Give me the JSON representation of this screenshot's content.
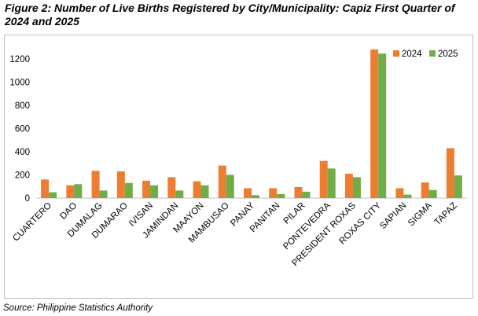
{
  "figure": {
    "title": "Figure 2: Number of Live Births Registered by City/Municipality: Capiz First Quarter of 2024 and 2025",
    "source": "Source: Philippine Statistics Authority"
  },
  "colors": {
    "s2024": "#ED7D31",
    "s2025": "#70AD47",
    "axis": "#bfbfbf"
  },
  "chart_data": {
    "type": "bar",
    "categories": [
      "CUARTERO",
      "DAO",
      "DUMALAG",
      "DUMARAO",
      "IVISAN",
      "JAMINDAN",
      "MAAYON",
      "MAMBUSAO",
      "PANAY",
      "PANITAN",
      "PILAR",
      "PONTEVEDRA",
      "PRESIDENT ROXAS",
      "ROXAS CITY",
      "SAPIAN",
      "SIGMA",
      "TAPAZ"
    ],
    "series": [
      {
        "name": "2024",
        "values": [
          160,
          110,
          235,
          230,
          150,
          180,
          145,
          280,
          85,
          85,
          95,
          320,
          210,
          1280,
          85,
          135,
          430
        ]
      },
      {
        "name": "2025",
        "values": [
          50,
          120,
          65,
          130,
          110,
          65,
          110,
          200,
          25,
          35,
          55,
          255,
          180,
          1245,
          30,
          70,
          195
        ]
      }
    ],
    "yticks": [
      0,
      200,
      400,
      600,
      800,
      1000,
      1200
    ],
    "ylim": [
      0,
      1300
    ],
    "title": "",
    "xlabel": "",
    "ylabel": "",
    "legend_position": "top-right",
    "grid": false
  }
}
